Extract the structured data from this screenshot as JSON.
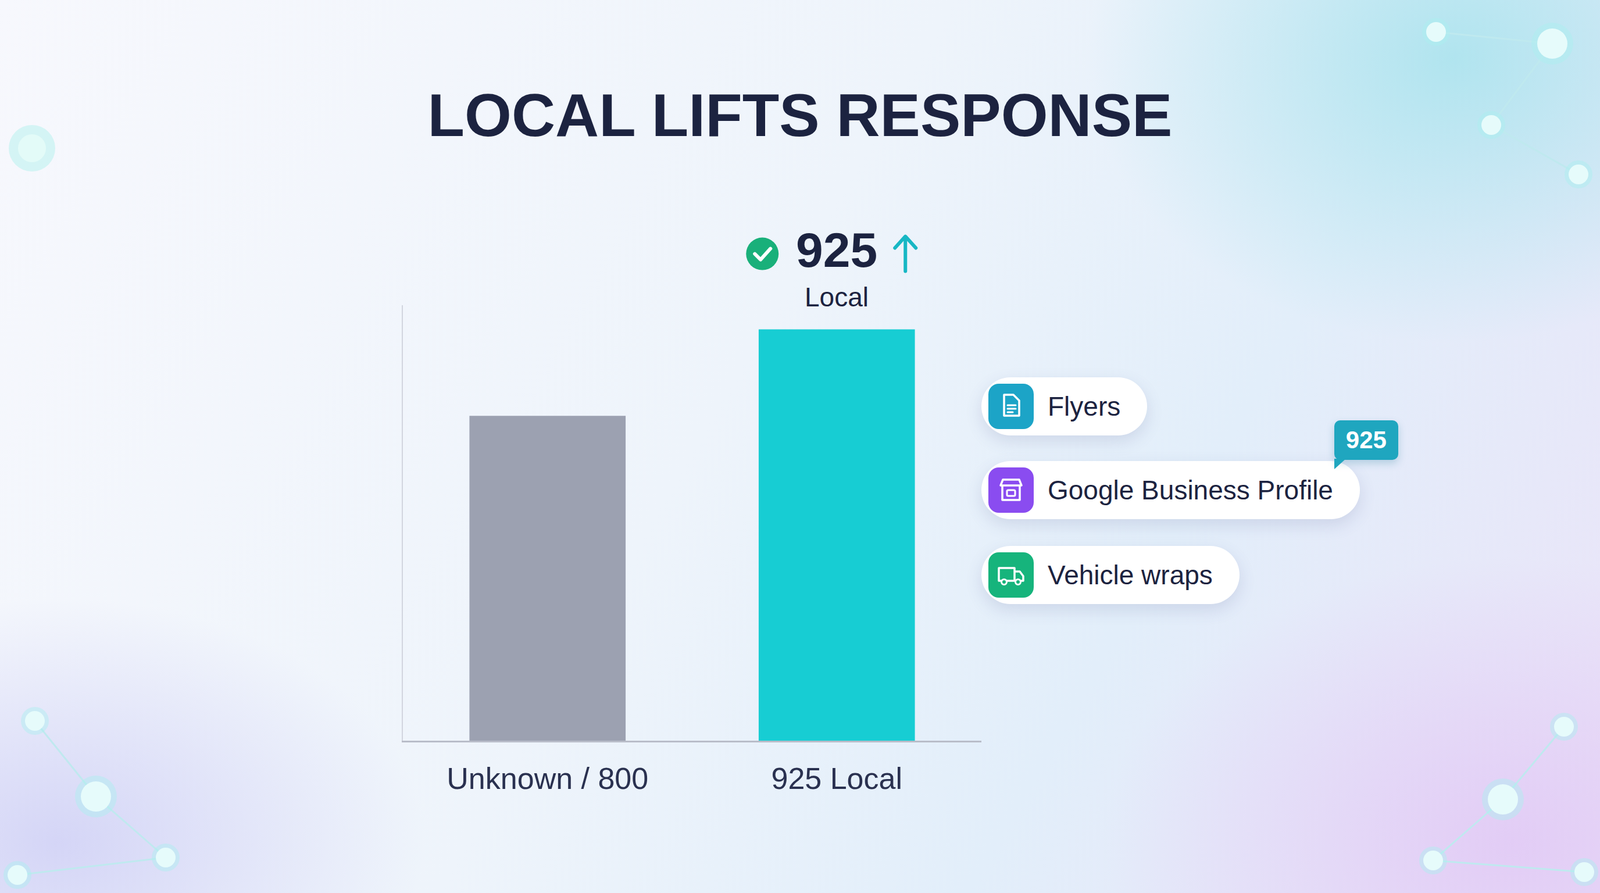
{
  "chart_data": {
    "type": "bar",
    "title": "LOCAL LIFTS RESPONSE",
    "categories": [
      "Unknown / 800",
      "925 Local"
    ],
    "values": [
      800,
      925
    ],
    "colors": [
      "#9ca1b1",
      "#17cdd3"
    ],
    "ylim": [
      330,
      960
    ],
    "yticks": [],
    "grid": false,
    "tick_labels": "x",
    "annotations": [
      {
        "category": "925 Local",
        "text": "925",
        "label": "Local"
      }
    ],
    "callouts": [
      {
        "text": "Flyers"
      },
      {
        "text": "Google Business Profile",
        "badge": 925
      },
      {
        "text": "Vehicle wraps"
      }
    ]
  }
}
